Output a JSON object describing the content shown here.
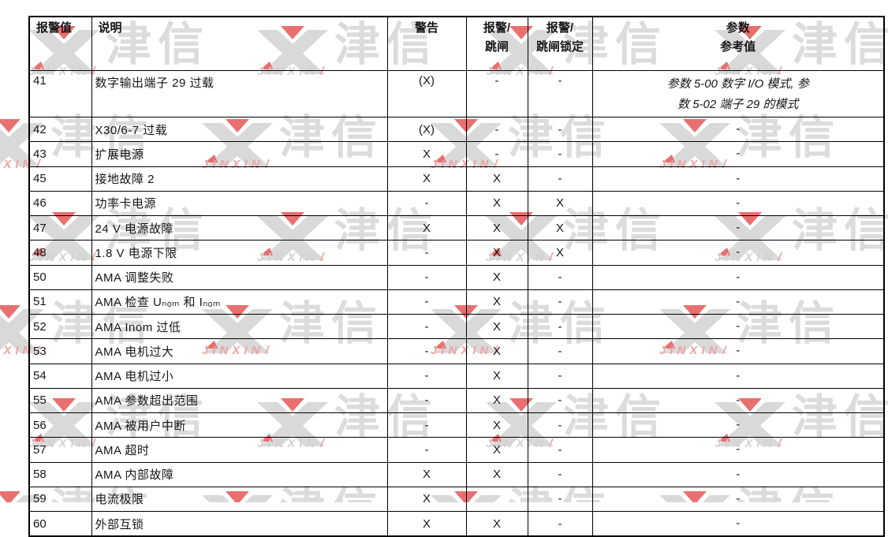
{
  "table": {
    "headers": [
      "报警值",
      "说明",
      "警告",
      "报警/\n跳闸",
      "报警/\n跳闸锁定",
      "参数\n参考值"
    ],
    "rows": [
      {
        "code": "41",
        "desc": "数字输出端子 29 过载",
        "warning": "(X)",
        "alarm_trip": "-",
        "trip_lock": "-",
        "ref": "参数 5-00 数字 I/O 模式, 参\n数 5-02 端子 29 的模式",
        "ref_italic": true,
        "tall": true
      },
      {
        "code": "42",
        "desc": "X30/6-7 过载",
        "warning": "(X)",
        "alarm_trip": "-",
        "trip_lock": "-",
        "ref": "-"
      },
      {
        "code": "43",
        "desc": "扩展电源",
        "warning": "X",
        "alarm_trip": "-",
        "trip_lock": "-",
        "ref": "-"
      },
      {
        "code": "45",
        "desc": "接地故障 2",
        "warning": "X",
        "alarm_trip": "X",
        "trip_lock": "-",
        "ref": "-"
      },
      {
        "code": "46",
        "desc": "功率卡电源",
        "warning": "-",
        "alarm_trip": "X",
        "trip_lock": "X",
        "ref": "-"
      },
      {
        "code": "47",
        "desc": "24 V 电源故障",
        "warning": "X",
        "alarm_trip": "X",
        "trip_lock": "X",
        "ref": "-"
      },
      {
        "code": "48",
        "desc": "1.8 V 电源下限",
        "warning": "-",
        "alarm_trip": "X",
        "trip_lock": "X",
        "ref": "-"
      },
      {
        "code": "50",
        "desc": "AMA 调整失败",
        "warning": "-",
        "alarm_trip": "X",
        "trip_lock": "-",
        "ref": "-"
      },
      {
        "code": "51",
        "desc": "AMA 检查 Uₙₒₘ 和 Iₙₒₘ",
        "warning": "-",
        "alarm_trip": "X",
        "trip_lock": "-",
        "ref": "-"
      },
      {
        "code": "52",
        "desc": "AMA Inom 过低",
        "warning": "-",
        "alarm_trip": "X",
        "trip_lock": "-",
        "ref": "-"
      },
      {
        "code": "53",
        "desc": "AMA 电机过大",
        "warning": "-",
        "alarm_trip": "X",
        "trip_lock": "-",
        "ref": "-"
      },
      {
        "code": "54",
        "desc": "AMA 电机过小",
        "warning": "-",
        "alarm_trip": "X",
        "trip_lock": "-",
        "ref": "-"
      },
      {
        "code": "55",
        "desc": "AMA 参数超出范围",
        "warning": "-",
        "alarm_trip": "X",
        "trip_lock": "-",
        "ref": "-"
      },
      {
        "code": "56",
        "desc": "AMA 被用户中断",
        "warning": "-",
        "alarm_trip": "X",
        "trip_lock": "-",
        "ref": "-"
      },
      {
        "code": "57",
        "desc": "AMA 超时",
        "warning": "-",
        "alarm_trip": "X",
        "trip_lock": "-",
        "ref": "-"
      },
      {
        "code": "58",
        "desc": "AMA 内部故障",
        "warning": "X",
        "alarm_trip": "X",
        "trip_lock": "-",
        "ref": "-"
      },
      {
        "code": "59",
        "desc": "电流极限",
        "warning": "X",
        "alarm_trip": "",
        "trip_lock": "-",
        "ref": "-"
      },
      {
        "code": "60",
        "desc": "外部互锁",
        "warning": "X",
        "alarm_trip": "X",
        "trip_lock": "-",
        "ref": "-"
      }
    ]
  },
  "watermark": {
    "logo_text": "津信",
    "sub_text": "JINXIN",
    "slash": "/",
    "gray_color": "#d9d9d9",
    "red_color": "#e87070"
  }
}
